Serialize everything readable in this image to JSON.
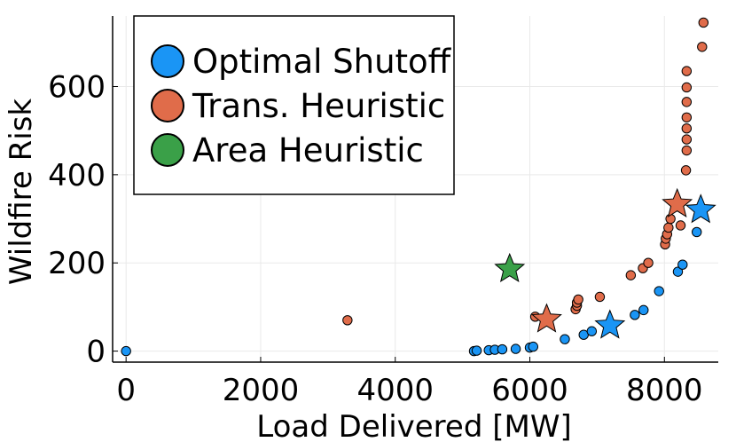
{
  "chart_data": {
    "type": "scatter",
    "xlabel": "Load Delivered [MW]",
    "ylabel": "Wildfire Risk",
    "xlim": [
      -200,
      8800
    ],
    "ylim": [
      -25,
      760
    ],
    "xticks": [
      0,
      2000,
      4000,
      6000,
      8000
    ],
    "yticks": [
      0,
      200,
      400,
      600
    ],
    "grid": true,
    "legend_position": "top-left",
    "series": [
      {
        "name": "Optimal Shutoff",
        "color": "#1a95f5",
        "points": [
          [
            0,
            0
          ],
          [
            5170,
            0
          ],
          [
            5210,
            1
          ],
          [
            5390,
            2
          ],
          [
            5480,
            3
          ],
          [
            5590,
            4
          ],
          [
            5790,
            5
          ],
          [
            6000,
            8
          ],
          [
            6050,
            10
          ],
          [
            6520,
            27
          ],
          [
            6800,
            37
          ],
          [
            6920,
            45
          ],
          [
            7560,
            82
          ],
          [
            7690,
            93
          ],
          [
            7920,
            136
          ],
          [
            8200,
            180
          ],
          [
            8270,
            196
          ],
          [
            8480,
            270
          ]
        ],
        "stars": [
          [
            7190,
            58
          ],
          [
            8540,
            320
          ]
        ]
      },
      {
        "name": "Trans. Heuristic",
        "color": "#e06c4a",
        "points": [
          [
            3290,
            70
          ],
          [
            6080,
            78
          ],
          [
            6680,
            95
          ],
          [
            6700,
            103
          ],
          [
            6700,
            110
          ],
          [
            6720,
            117
          ],
          [
            7040,
            123
          ],
          [
            7500,
            172
          ],
          [
            7680,
            188
          ],
          [
            7760,
            200
          ],
          [
            8010,
            242
          ],
          [
            8020,
            255
          ],
          [
            8040,
            265
          ],
          [
            8060,
            280
          ],
          [
            8090,
            300
          ],
          [
            8240,
            285
          ],
          [
            8320,
            410
          ],
          [
            8330,
            455
          ],
          [
            8330,
            480
          ],
          [
            8330,
            505
          ],
          [
            8330,
            530
          ],
          [
            8330,
            565
          ],
          [
            8330,
            598
          ],
          [
            8330,
            635
          ],
          [
            8560,
            690
          ],
          [
            8580,
            745
          ]
        ],
        "stars": [
          [
            6250,
            72
          ],
          [
            8190,
            333
          ]
        ]
      },
      {
        "name": "Area Heuristic",
        "color": "#3aa048",
        "points": [],
        "stars": [
          [
            5700,
            186
          ]
        ]
      }
    ]
  }
}
